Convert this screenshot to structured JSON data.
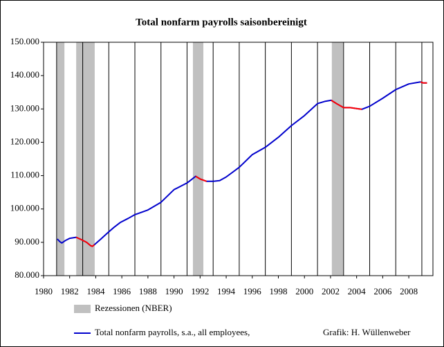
{
  "chart_data": {
    "type": "line",
    "title": "Total nonfarm payrolls  saisonbereinigt",
    "x": [
      1981.05,
      1981.25,
      1981.4,
      1981.7,
      1982.0,
      1982.5,
      1982.9,
      1983.3,
      1983.6,
      1983.75,
      1983.9,
      1984.4,
      1984.9,
      1985.4,
      1985.9,
      1986.5,
      1987.0,
      1988.0,
      1989.0,
      1990.0,
      1991.0,
      1991.66,
      1992.0,
      1992.5,
      1993.0,
      1993.5,
      1994.0,
      1995.0,
      1996.0,
      1997.0,
      1998.0,
      1999.0,
      2000.0,
      2001.0,
      2001.6,
      2002.05,
      2002.5,
      2003.0,
      2003.5,
      2004.0,
      2004.4,
      2005.0,
      2006.0,
      2007.0,
      2008.0,
      2008.9,
      2009.1,
      2009.4
    ],
    "series": [
      {
        "name": "Total nonfarm payrolls, s.a., all employees,",
        "color": "#0000cc",
        "values": [
          91000,
          90200,
          89800,
          90600,
          91200,
          91500,
          90800,
          90000,
          89000,
          88800,
          89300,
          91000,
          92800,
          94500,
          96000,
          97200,
          98300,
          99700,
          102000,
          105800,
          107800,
          109800,
          109000,
          108300,
          108300,
          108500,
          109600,
          112500,
          116300,
          118500,
          121500,
          125000,
          128000,
          131600,
          132300,
          132600,
          131500,
          130400,
          130400,
          130100,
          129900,
          130800,
          133200,
          135800,
          137500,
          138100,
          137800,
          137800
        ]
      },
      {
        "color": "#ff0000",
        "values": [
          null,
          null,
          null,
          null,
          null,
          91500,
          90800,
          90000,
          89000,
          88800,
          89300,
          null,
          null,
          null,
          null,
          null,
          null,
          null,
          null,
          null,
          null,
          109800,
          109000,
          108300,
          null,
          null,
          null,
          null,
          null,
          null,
          null,
          null,
          null,
          null,
          null,
          132600,
          131500,
          130400,
          130400,
          130100,
          129900,
          null,
          null,
          null,
          null,
          138100,
          137800,
          137800
        ]
      }
    ],
    "recessions": {
      "name": "Rezessionen (NBER)",
      "color": "#c0c0c0",
      "ranges": [
        [
          1981.0,
          1981.6
        ],
        [
          1982.5,
          1983.92
        ],
        [
          1991.45,
          1992.25
        ],
        [
          2002.1,
          2002.96
        ]
      ]
    },
    "xlim": [
      1980,
      2009.85
    ],
    "xticks": [
      1980,
      1982,
      1984,
      1986,
      1988,
      1990,
      1992,
      1994,
      1996,
      1998,
      2000,
      2002,
      2004,
      2006,
      2008
    ],
    "x_gridlines": [
      1981,
      1983,
      1985,
      1987,
      1989,
      1991,
      1993,
      1995,
      1997,
      1999,
      2001,
      2003,
      2005,
      2007,
      2009
    ],
    "ylim": [
      80000,
      150000
    ],
    "yticks": [
      {
        "value": 80000,
        "label": "80.000"
      },
      {
        "value": 90000,
        "label": "90.000"
      },
      {
        "value": 100000,
        "label": "100.000"
      },
      {
        "value": 110000,
        "label": "110.000"
      },
      {
        "value": 120000,
        "label": "120.000"
      },
      {
        "value": 130000,
        "label": "130.000"
      },
      {
        "value": 140000,
        "label": "140.000"
      },
      {
        "value": 150000,
        "label": "150.000"
      }
    ],
    "credit": "Grafik: H. Wüllenweber"
  }
}
